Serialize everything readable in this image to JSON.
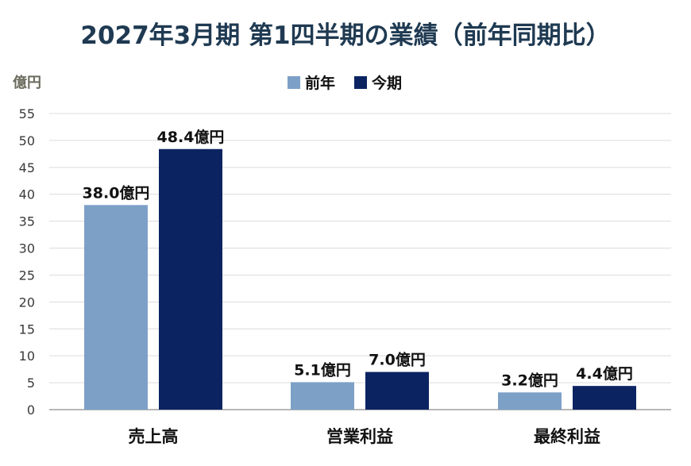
{
  "chart_data": {
    "type": "bar",
    "title": "2027年3月期 第1四半期の業績（前年同期比）",
    "ylabel": "億円",
    "xlabel": "",
    "categories": [
      "売上高",
      "営業利益",
      "最終利益"
    ],
    "series": [
      {
        "name": "前年",
        "values": [
          38.0,
          5.1,
          3.2
        ],
        "labels": [
          "38.0億円",
          "5.1億円",
          "3.2億円"
        ],
        "color": "#7da0c7"
      },
      {
        "name": "今期",
        "values": [
          48.4,
          7.0,
          4.4
        ],
        "labels": [
          "48.4億円",
          "7.0億円",
          "4.4億円"
        ],
        "color": "#0b2461"
      }
    ],
    "ylim": [
      0,
      55
    ],
    "yticks": [
      0,
      5,
      10,
      15,
      20,
      25,
      30,
      35,
      40,
      45,
      50,
      55
    ],
    "grid": true,
    "legend_position": "top-center"
  },
  "colors": {
    "title": "#1f3a52",
    "axis_text": "#3a3a3a",
    "ylabel_text": "#6b6b5e",
    "gridline": "#dcdcdc",
    "baseline": "#8c8c8c",
    "value_label": "#111111",
    "category_label": "#111111"
  }
}
